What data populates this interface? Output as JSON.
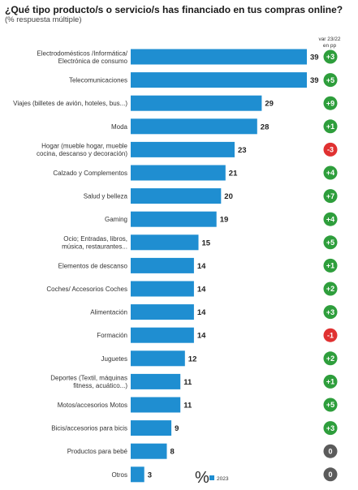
{
  "header": {
    "title": "¿Qué tipo producto/s o servicio/s has financiado en tus compras online?",
    "subtitle": "(% respuesta múltiple)",
    "var_header_line1": "var 23/22",
    "var_header_line2": "en pp"
  },
  "legend": {
    "percent_symbol": "%",
    "series_label": "2023"
  },
  "colors": {
    "bar": "#1f8ed1",
    "positive": "#2e9e3c",
    "negative": "#e03131",
    "neutral": "#5b5b5b"
  },
  "chart_data": {
    "type": "bar",
    "orientation": "horizontal",
    "title": "¿Qué tipo producto/s o servicio/s has financiado en tus compras online?",
    "subtitle": "(% respuesta múltiple)",
    "series": [
      {
        "name": "2023",
        "values": [
          39,
          39,
          29,
          28,
          23,
          21,
          20,
          19,
          15,
          14,
          14,
          14,
          14,
          12,
          11,
          11,
          9,
          8,
          3
        ]
      }
    ],
    "categories": [
      "Electrodomésticos /Informática/ Electrónica de consumo",
      "Telecomunicaciones",
      "Viajes (billetes de avión, hoteles, bus...)",
      "Moda",
      "Hogar (mueble hogar, mueble cocina, descanso y decoración)",
      "Calzado y Complementos",
      "Salud y belleza",
      "Gaming",
      "Ocio; Entradas, libros, música, restaurantes...",
      "Elementos de descanso",
      "Coches/ Accesorios Coches",
      "Alimentación",
      "Formación",
      "Juguetes",
      "Deportes (Textil, máquinas fitness, acuático...)",
      "Motos/accesorios Motos",
      "Bicis/accesorios para bicis",
      "Productos para bebé",
      "Otros"
    ],
    "category_lines": [
      [
        "Electrodomésticos /Informática/",
        "Electrónica de consumo"
      ],
      [
        "Telecomunicaciones"
      ],
      [
        "Viajes (billetes de avión, hoteles, bus...)"
      ],
      [
        "Moda"
      ],
      [
        "Hogar (mueble hogar, mueble",
        "cocina, descanso y decoración)"
      ],
      [
        "Calzado y Complementos"
      ],
      [
        "Salud y belleza"
      ],
      [
        "Gaming"
      ],
      [
        "Ocio; Entradas, libros,",
        "música, restaurantes..."
      ],
      [
        "Elementos de descanso"
      ],
      [
        "Coches/ Accesorios Coches"
      ],
      [
        "Alimentación"
      ],
      [
        "Formación"
      ],
      [
        "Juguetes"
      ],
      [
        "Deportes (Textil, máquinas",
        "fitness, acuático...)"
      ],
      [
        "Motos/accesorios Motos"
      ],
      [
        "Bicis/accesorios para bicis"
      ],
      [
        "Productos para bebé"
      ],
      [
        "Otros"
      ]
    ],
    "values": [
      39,
      39,
      29,
      28,
      23,
      21,
      20,
      19,
      15,
      14,
      14,
      14,
      14,
      12,
      11,
      11,
      9,
      8,
      3
    ],
    "variation_labels": [
      "+3",
      "+5",
      "+9",
      "+1",
      "-3",
      "+4",
      "+7",
      "+4",
      "+5",
      "+1",
      "+2",
      "+3",
      "-1",
      "+2",
      "+1",
      "+5",
      "+3",
      "0",
      "0"
    ],
    "variation_values": [
      3,
      5,
      9,
      1,
      -3,
      4,
      7,
      4,
      5,
      1,
      2,
      3,
      -1,
      2,
      1,
      5,
      3,
      0,
      0
    ],
    "xlim": [
      0,
      39
    ],
    "grid": false,
    "legend_position": "bottom"
  }
}
